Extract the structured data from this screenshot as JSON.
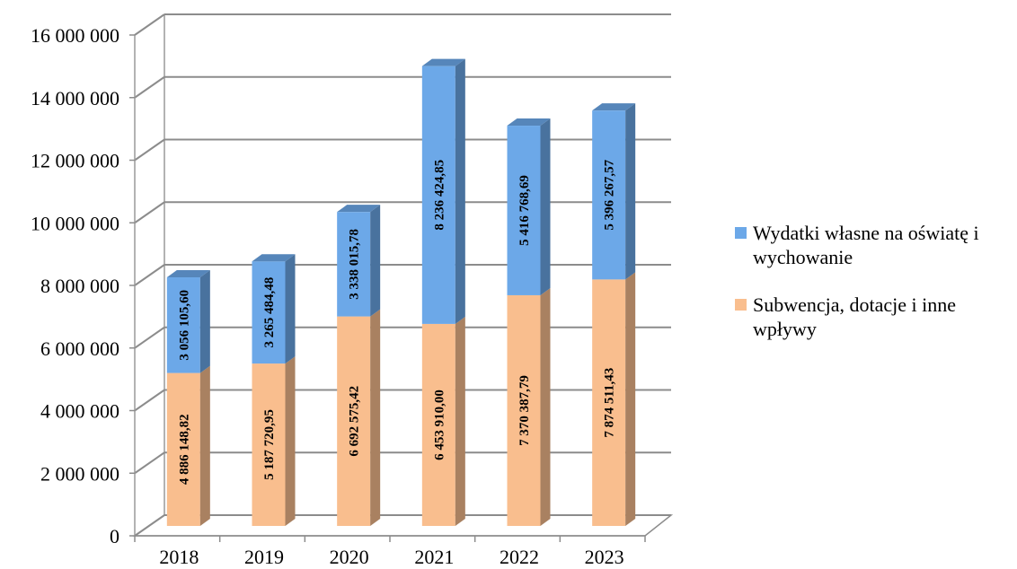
{
  "chart_data": {
    "type": "bar",
    "stacked": true,
    "three_d": true,
    "categories": [
      "2018",
      "2019",
      "2020",
      "2021",
      "2022",
      "2023"
    ],
    "series": [
      {
        "name": "Subwencja, dotacje i inne wpływy",
        "color": "#F9BE8E",
        "values": [
          4886148.82,
          5187720.95,
          6692575.42,
          6453910.0,
          7370387.79,
          7874511.43
        ],
        "labels": [
          "4 886 148,82",
          "5 187 720,95",
          "6 692 575,42",
          "6 453 910,00",
          "7 370 387,79",
          "7 874 511,43"
        ]
      },
      {
        "name": "Wydatki własne na oświatę i wychowanie",
        "color": "#6CA8E8",
        "values": [
          3056105.6,
          3265484.48,
          3338015.78,
          8236424.85,
          5416768.69,
          5396267.57
        ],
        "labels": [
          "3 056 105,60",
          "3 265 484,48",
          "3 338 015,78",
          "8 236 424,85",
          "5 416 768,69",
          "5 396 267,57"
        ]
      }
    ],
    "yticks": [
      0,
      2000000,
      4000000,
      6000000,
      8000000,
      10000000,
      12000000,
      14000000,
      16000000
    ],
    "ytick_labels": [
      "0",
      "2 000 000",
      "4 000 000",
      "6 000 000",
      "8 000 000",
      "10 000 000",
      "12 000 000",
      "14 000 000",
      "16 000 000"
    ],
    "ylim": [
      0,
      16000000
    ],
    "title": "",
    "xlabel": "",
    "ylabel": "",
    "grid": true,
    "legend_position": "right"
  }
}
